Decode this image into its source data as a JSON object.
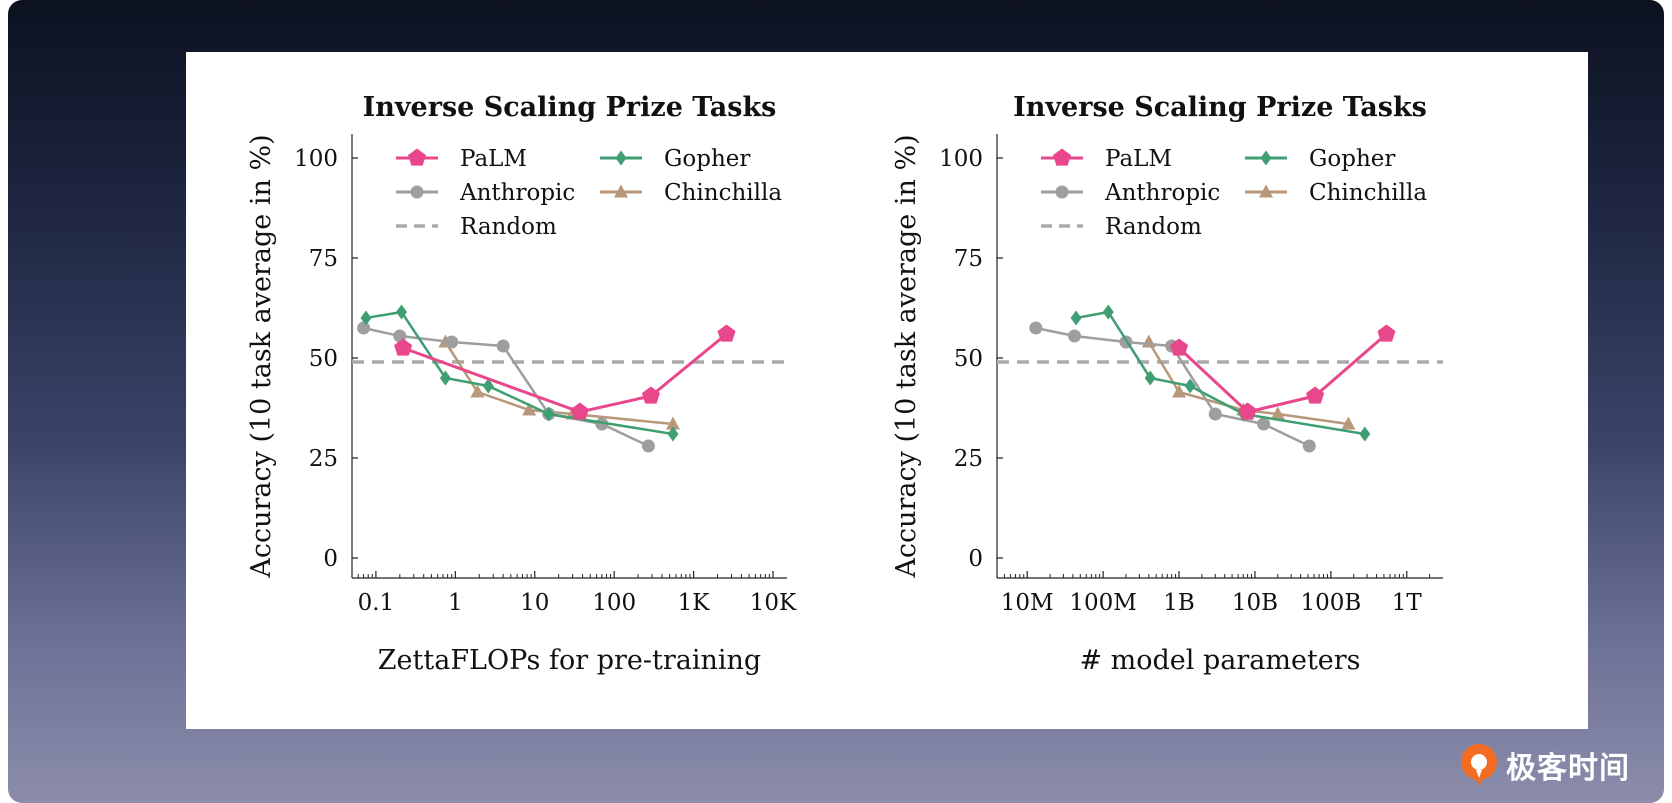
{
  "logo": {
    "text": "极客时间"
  },
  "chart_data": [
    {
      "type": "line",
      "title": "Inverse Scaling Prize Tasks",
      "xlabel": "ZettaFLOPs for pre-training",
      "ylabel": "Accuracy (10 task average in %)",
      "xscale": "log",
      "xlim": [
        0.05,
        15000
      ],
      "ylim": [
        -5,
        106
      ],
      "xticks": [
        0.1,
        1,
        10,
        100,
        1000,
        10000
      ],
      "xtick_labels": [
        "0.1",
        "1",
        "10",
        "100",
        "1K",
        "10K"
      ],
      "yticks": [
        0,
        25,
        50,
        75,
        100
      ],
      "ytick_labels": [
        "0",
        "25",
        "50",
        "75",
        "100"
      ],
      "legend_position": "top",
      "random_baseline": {
        "name": "Random",
        "value": 49,
        "color": "#a9a9a9"
      },
      "series": [
        {
          "name": "PaLM",
          "color": "#e8478b",
          "marker": "pentagon",
          "x": [
            0.22,
            37,
            290,
            2600
          ],
          "y": [
            52.5,
            36.5,
            40.5,
            56
          ]
        },
        {
          "name": "Gopher",
          "color": "#3f9f72",
          "marker": "diamond",
          "x": [
            0.075,
            0.21,
            0.75,
            2.6,
            15,
            550
          ],
          "y": [
            60,
            61.5,
            45,
            43,
            36,
            31
          ]
        },
        {
          "name": "Anthropic",
          "color": "#9e9e9e",
          "marker": "circle",
          "x": [
            0.07,
            0.2,
            0.9,
            4,
            15,
            70,
            270
          ],
          "y": [
            57.5,
            55.5,
            54,
            53,
            36,
            33.5,
            28
          ]
        },
        {
          "name": "Chinchilla",
          "color": "#b8977a",
          "marker": "triangle",
          "x": [
            0.75,
            1.9,
            8.5,
            30,
            550
          ],
          "y": [
            54,
            41.5,
            37,
            36,
            33.5
          ]
        }
      ]
    },
    {
      "type": "line",
      "title": "Inverse Scaling Prize Tasks",
      "xlabel": "# model parameters",
      "ylabel": "Accuracy (10 task average in %)",
      "xscale": "log",
      "xlim": [
        4000000,
        3000000000000
      ],
      "ylim": [
        -5,
        106
      ],
      "xticks": [
        10000000,
        100000000,
        1000000000,
        10000000000,
        100000000000,
        1000000000000
      ],
      "xtick_labels": [
        "10M",
        "100M",
        "1B",
        "10B",
        "100B",
        "1T"
      ],
      "yticks": [
        0,
        25,
        50,
        75,
        100
      ],
      "ytick_labels": [
        "0",
        "25",
        "50",
        "75",
        "100"
      ],
      "legend_position": "top",
      "random_baseline": {
        "name": "Random",
        "value": 49,
        "color": "#a9a9a9"
      },
      "series": [
        {
          "name": "PaLM",
          "color": "#e8478b",
          "marker": "pentagon",
          "x": [
            1000000000,
            8000000000,
            62000000000,
            540000000000
          ],
          "y": [
            52.5,
            36.5,
            40.5,
            56
          ]
        },
        {
          "name": "Gopher",
          "color": "#3f9f72",
          "marker": "diamond",
          "x": [
            44000000,
            117000000,
            417000000,
            1400000000,
            7100000000,
            280000000000
          ],
          "y": [
            60,
            61.5,
            45,
            43,
            36,
            31
          ]
        },
        {
          "name": "Anthropic",
          "color": "#9e9e9e",
          "marker": "circle",
          "x": [
            13000000,
            42000000,
            200000000,
            800000000,
            3000000000,
            13000000000,
            52000000000
          ],
          "y": [
            57.5,
            55.5,
            54,
            53,
            36,
            33.5,
            28
          ]
        },
        {
          "name": "Chinchilla",
          "color": "#b8977a",
          "marker": "triangle",
          "x": [
            400000000,
            1000000000,
            7000000000,
            20000000000,
            170000000000
          ],
          "y": [
            54,
            41.5,
            37,
            36,
            33.5
          ]
        }
      ]
    }
  ]
}
